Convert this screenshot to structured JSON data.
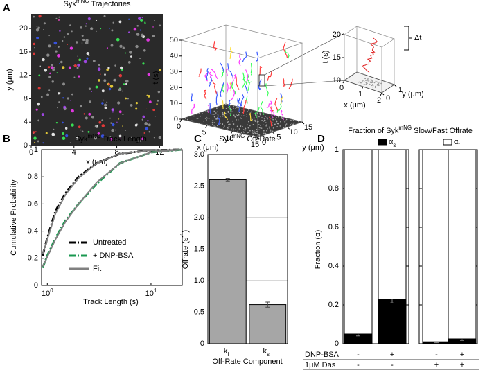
{
  "chart_data": [
    {
      "type": "image",
      "panel": "A",
      "title": [
        "Syk",
        "mNG",
        " Trajectories"
      ],
      "xlabel": "x (μm)",
      "ylabel": "y (μm)",
      "xlim": [
        0,
        12.3
      ],
      "ylim": [
        0,
        22.5
      ],
      "xticks": [
        0,
        4,
        8,
        12
      ],
      "yticks": [
        0,
        4,
        8,
        12,
        16,
        20
      ]
    },
    {
      "type": "scatter3d",
      "xlabel": "x (μm)",
      "ylabel": "y (μm)",
      "zlabel": "t (s)",
      "xlim": [
        0,
        15
      ],
      "ylim": [
        0,
        15
      ],
      "zlim": [
        0,
        50
      ],
      "xticks": [
        0,
        5,
        10,
        15
      ],
      "yticks": [
        0,
        5,
        10,
        15
      ],
      "zticks": [
        0,
        10,
        20,
        30,
        40,
        50
      ]
    },
    {
      "type": "line3d",
      "xlabel": "x (μm)",
      "ylabel": "y (μm)",
      "zlabel": "t (s)",
      "annotation": "Δt",
      "xlim": [
        0,
        2
      ],
      "ylim": [
        0,
        1
      ],
      "zlim": [
        10,
        20
      ],
      "xticks": [
        0,
        1,
        2
      ],
      "yticks": [
        0,
        1
      ],
      "zticks": [
        10,
        15,
        20
      ]
    },
    {
      "type": "line",
      "panel": "B",
      "title": [
        "Syk",
        "mNG",
        " Track Length"
      ],
      "xlabel": "Track Length (s)",
      "ylabel": "Cumulative Probability",
      "log_x": true,
      "xlim": [
        0.88,
        20
      ],
      "xticks": [
        {
          "value": 1,
          "label": [
            "10",
            "0"
          ]
        },
        {
          "value": 10,
          "label": [
            "10",
            "1"
          ]
        }
      ],
      "ylim": [
        0,
        1
      ],
      "yticks": [
        0,
        0.2,
        0.4,
        0.6,
        0.8,
        1
      ],
      "legend": "lower right",
      "x": [
        0.9,
        1,
        1.2,
        1.5,
        2,
        3,
        5,
        10,
        20
      ],
      "series": [
        {
          "name": "Untreated",
          "color": "#000000",
          "style": "dashdot",
          "values": [
            0.22,
            0.35,
            0.55,
            0.68,
            0.8,
            0.9,
            0.97,
            0.995,
            1
          ]
        },
        {
          "name": "+ DNP-BSA",
          "color": "#1a9850",
          "style": "dashdot",
          "values": [
            0.13,
            0.22,
            0.35,
            0.48,
            0.6,
            0.75,
            0.9,
            0.98,
            1
          ]
        },
        {
          "name": "Fit",
          "color": "#808080",
          "style": "solid",
          "values": [
            0.23,
            0.34,
            0.53,
            0.67,
            0.79,
            0.9,
            0.97,
            0.995,
            1
          ]
        },
        {
          "color": "#808080",
          "style": "solid",
          "values": [
            0.14,
            0.21,
            0.34,
            0.47,
            0.6,
            0.76,
            0.9,
            0.98,
            1
          ]
        }
      ]
    },
    {
      "type": "bar",
      "panel": "C",
      "title": [
        "Syk",
        "mNG",
        "  Off-Rate"
      ],
      "xlabel": "Off-Rate Component",
      "ylabel": [
        "Offrate (s",
        "-1",
        ")"
      ],
      "categories": [
        "k",
        "k"
      ],
      "category_subscripts": [
        "f",
        "s"
      ],
      "values": [
        2.6,
        0.62
      ],
      "errors": [
        0.02,
        0.04
      ],
      "color": "#a6a6a6",
      "ylim": [
        0,
        3
      ],
      "yticks": [
        0,
        0.5,
        {
          "value": 1,
          "label": "1.0"
        },
        1.5,
        {
          "value": 2,
          "label": "2.0"
        },
        2.5,
        {
          "value": 3,
          "label": "3.0"
        }
      ],
      "grid": true
    },
    {
      "type": "stacked_bar",
      "panel": "D",
      "title": [
        "Fraction of Syk",
        "mNG",
        " Slow/Fast Offrate"
      ],
      "ylabel": "Fraction (α)",
      "ylim": [
        0,
        1
      ],
      "yticks": [
        0,
        0.2,
        0.4,
        0.6,
        0.8,
        1
      ],
      "series": [
        {
          "name": [
            "α",
            "s"
          ],
          "color": "#000000",
          "values": [
            0.05,
            0.23,
            0.01,
            0.025
          ],
          "errors": [
            0.01,
            0.02,
            0.005,
            0.008
          ]
        },
        {
          "name": [
            "α",
            "f"
          ],
          "color": "#ffffff",
          "values": [
            0.95,
            0.77,
            0.99,
            0.975
          ]
        }
      ],
      "conditions": [
        {
          "label": "DNP-BSA",
          "values": [
            "-",
            "+",
            "-",
            "+"
          ]
        },
        {
          "label": "1μM Das",
          "values": [
            "-",
            "-",
            "+",
            "+"
          ]
        }
      ]
    }
  ]
}
